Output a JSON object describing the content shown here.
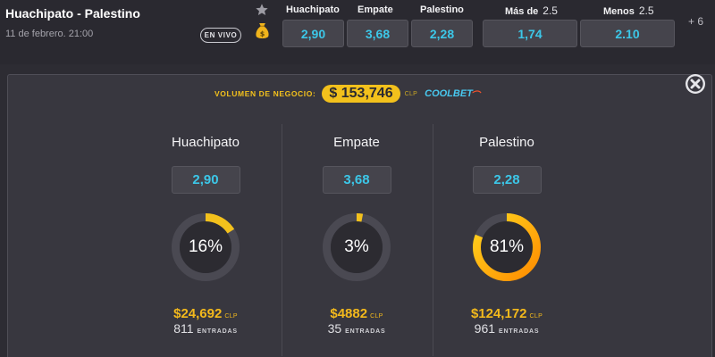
{
  "match": {
    "title": "Huachipato - Palestino",
    "date": "11 de febrero. 21:00",
    "live_label": "EN VIVO",
    "more_markets": "+ 6"
  },
  "odds_headers": {
    "home": "Huachipato",
    "draw": "Empate",
    "away": "Palestino",
    "over": "Más de",
    "over_line": "2.5",
    "under": "Menos",
    "under_line": "2.5"
  },
  "odds": {
    "home": "2,90",
    "draw": "3,68",
    "away": "2,28",
    "over": "1,74",
    "under": "2.10"
  },
  "volume": {
    "label": "VOLUMEN DE NEGOCIO:",
    "amount": "$ 153,746",
    "currency": "CLP",
    "brand": "COOLBET"
  },
  "outcomes": [
    {
      "name": "Huachipato",
      "odd": "2,90",
      "percent_label": "16%",
      "percent": 16,
      "amount": "$24,692",
      "currency": "CLP",
      "entries": "811",
      "entries_label": "ENTRADAS"
    },
    {
      "name": "Empate",
      "odd": "3,68",
      "percent_label": "3%",
      "percent": 3,
      "amount": "$4882",
      "currency": "CLP",
      "entries": "35",
      "entries_label": "ENTRADAS"
    },
    {
      "name": "Palestino",
      "odd": "2,28",
      "percent_label": "81%",
      "percent": 81,
      "amount": "$124,172",
      "currency": "CLP",
      "entries": "961",
      "entries_label": "ENTRADAS"
    }
  ],
  "colors": {
    "accent_yellow": "#f3c11c",
    "odds_cyan": "#3cc7e8",
    "ring_track": "#4a4952",
    "ring_center": "#2c2b31",
    "winner_gradient_start": "#ff8c00",
    "winner_gradient_end": "#ffd51f"
  },
  "icons": [
    "star-icon",
    "moneybag-icon",
    "close-icon"
  ]
}
